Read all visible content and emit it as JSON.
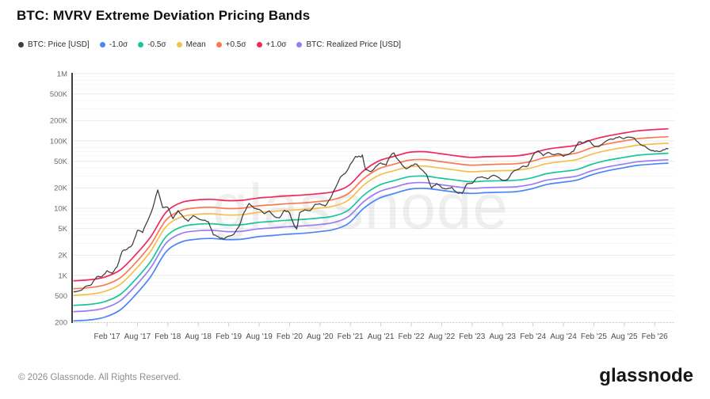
{
  "header": {
    "title": "BTC: MVRV Extreme Deviation Pricing Bands"
  },
  "legend": [
    {
      "label": "BTC: Price [USD]",
      "color": "#3d3d3d"
    },
    {
      "label": "-1.0σ",
      "color": "#4a86f7"
    },
    {
      "label": "-0.5σ",
      "color": "#17c79b"
    },
    {
      "label": "Mean",
      "color": "#f5bf4a"
    },
    {
      "label": "+0.5σ",
      "color": "#fa7950"
    },
    {
      "label": "+1.0σ",
      "color": "#f2275c"
    },
    {
      "label": "BTC: Realized Price [USD]",
      "color": "#9b7df2"
    }
  ],
  "watermark": "glassnode",
  "footer": {
    "copyright": "© 2026 Glassnode. All Rights Reserved.",
    "logo": "glassnode"
  },
  "chart_data": {
    "type": "line",
    "title": "BTC: MVRV Extreme Deviation Pricing Bands",
    "grid": "horizontal-log",
    "legend_position": "top",
    "y_axis": {
      "scale": "log",
      "range": [
        200,
        1000000
      ],
      "ticks": [
        {
          "label": "1M",
          "value": 1000000
        },
        {
          "label": "500K",
          "value": 500000
        },
        {
          "label": "200K",
          "value": 200000
        },
        {
          "label": "100K",
          "value": 100000
        },
        {
          "label": "50K",
          "value": 50000
        },
        {
          "label": "20K",
          "value": 20000
        },
        {
          "label": "10K",
          "value": 10000
        },
        {
          "label": "5K",
          "value": 5000
        },
        {
          "label": "2K",
          "value": 2000
        },
        {
          "label": "1K",
          "value": 1000
        },
        {
          "label": "500",
          "value": 500
        },
        {
          "label": "200",
          "value": 200
        }
      ]
    },
    "x_axis": {
      "unit": "decimal_year",
      "range": [
        2016.53,
        2026.4
      ],
      "ticks": [
        {
          "label": "Feb '17",
          "t": 2017.083
        },
        {
          "label": "Aug '17",
          "t": 2017.583
        },
        {
          "label": "Feb '18",
          "t": 2018.083
        },
        {
          "label": "Aug '18",
          "t": 2018.583
        },
        {
          "label": "Feb '19",
          "t": 2019.083
        },
        {
          "label": "Aug '19",
          "t": 2019.583
        },
        {
          "label": "Feb '20",
          "t": 2020.083
        },
        {
          "label": "Aug '20",
          "t": 2020.583
        },
        {
          "label": "Feb '21",
          "t": 2021.083
        },
        {
          "label": "Aug '21",
          "t": 2021.583
        },
        {
          "label": "Feb '22",
          "t": 2022.083
        },
        {
          "label": "Aug '22",
          "t": 2022.583
        },
        {
          "label": "Feb '23",
          "t": 2023.083
        },
        {
          "label": "Aug '23",
          "t": 2023.583
        },
        {
          "label": "Feb '24",
          "t": 2024.083
        },
        {
          "label": "Aug '24",
          "t": 2024.583
        },
        {
          "label": "Feb '25",
          "t": 2025.083
        },
        {
          "label": "Aug '25",
          "t": 2025.583
        },
        {
          "label": "Feb '26",
          "t": 2026.083
        }
      ]
    },
    "band_x": [
      2016.54,
      2016.8,
      2017.05,
      2017.3,
      2017.55,
      2017.8,
      2018.05,
      2018.3,
      2018.55,
      2018.8,
      2019.05,
      2019.3,
      2019.55,
      2019.8,
      2020.05,
      2020.3,
      2020.55,
      2020.8,
      2021.05,
      2021.3,
      2021.55,
      2021.8,
      2022.05,
      2022.3,
      2022.55,
      2022.8,
      2023.05,
      2023.3,
      2023.55,
      2023.8,
      2024.05,
      2024.3,
      2024.55,
      2024.8,
      2025.05,
      2025.3,
      2025.55,
      2025.8,
      2026.05,
      2026.3
    ],
    "series": [
      {
        "name": "+1.0σ",
        "color": "#f2275c",
        "kind": "band",
        "values": [
          835,
          864,
          950,
          1210,
          2020,
          3740,
          8640,
          12100,
          13250,
          13540,
          12960,
          13100,
          14100,
          14690,
          15260,
          15700,
          16420,
          17570,
          21600,
          36000,
          50400,
          59000,
          67700,
          69100,
          64800,
          60500,
          57000,
          58200,
          59000,
          59900,
          64800,
          74900,
          80600,
          86400,
          103700,
          118100,
          129600,
          141100,
          146900,
          151200
        ]
      },
      {
        "name": "+0.5σ",
        "color": "#fa7950",
        "kind": "band",
        "values": [
          638,
          660,
          726,
          924,
          1540,
          2860,
          6600,
          9240,
          10120,
          10340,
          9900,
          10010,
          10780,
          11220,
          11660,
          11990,
          12540,
          13420,
          16500,
          27500,
          38500,
          45100,
          51700,
          52800,
          49500,
          46200,
          43600,
          44400,
          45100,
          45800,
          49500,
          57200,
          61600,
          66000,
          79200,
          90200,
          99000,
          107800,
          112200,
          115500
        ]
      },
      {
        "name": "Mean",
        "color": "#f5bf4a",
        "kind": "band",
        "values": [
          510,
          528,
          581,
          739,
          1230,
          2290,
          5280,
          7390,
          8100,
          8270,
          7920,
          8010,
          8620,
          8980,
          9330,
          9590,
          10000,
          10740,
          13200,
          22000,
          30800,
          36100,
          41400,
          42200,
          39600,
          37000,
          34800,
          35600,
          36100,
          36600,
          39600,
          45800,
          49300,
          52800,
          63400,
          72200,
          79200,
          86200,
          89800,
          92400
        ]
      },
      {
        "name": "-0.5σ",
        "color": "#17c79b",
        "kind": "band",
        "values": [
          360,
          372,
          410,
          522,
          870,
          1620,
          3740,
          5250,
          5750,
          5880,
          5630,
          5690,
          6130,
          6380,
          6630,
          6820,
          7130,
          7630,
          9380,
          15600,
          21900,
          25600,
          29400,
          30000,
          28100,
          26300,
          24800,
          25300,
          25600,
          26000,
          28100,
          32500,
          35000,
          37500,
          45000,
          51300,
          56300,
          61300,
          63800,
          65600
        ]
      },
      {
        "name": "-1.0σ",
        "color": "#4a86f7",
        "kind": "band",
        "values": [
          212,
          219,
          241,
          308,
          515,
          960,
          2230,
          3140,
          3460,
          3550,
          3420,
          3470,
          3760,
          3930,
          4110,
          4240,
          4460,
          4800,
          5930,
          9940,
          14000,
          16500,
          19100,
          19700,
          18600,
          17400,
          16600,
          17000,
          17300,
          17600,
          19300,
          22400,
          24200,
          26100,
          31400,
          35900,
          39600,
          43300,
          45200,
          46700
        ]
      },
      {
        "name": "BTC: Realized Price [USD]",
        "color": "#9b7df2",
        "kind": "band",
        "values": [
          290,
          300,
          330,
          420,
          700,
          1300,
          3000,
          4200,
          4600,
          4700,
          4500,
          4550,
          4900,
          5100,
          5300,
          5450,
          5700,
          6100,
          7500,
          12500,
          17500,
          20500,
          23500,
          24000,
          22500,
          21000,
          19800,
          20200,
          20500,
          20800,
          22500,
          26000,
          28000,
          30000,
          36000,
          41000,
          45000,
          49000,
          51000,
          52500
        ]
      },
      {
        "name": "BTC: Price [USD]",
        "color": "#3d3d3d",
        "kind": "price",
        "x": [
          2016.54,
          2016.583,
          2016.667,
          2016.75,
          2016.833,
          2016.917,
          2017.0,
          2017.083,
          2017.167,
          2017.25,
          2017.333,
          2017.417,
          2017.5,
          2017.583,
          2017.667,
          2017.75,
          2017.833,
          2017.917,
          2018.0,
          2018.083,
          2018.167,
          2018.25,
          2018.333,
          2018.417,
          2018.5,
          2018.583,
          2018.667,
          2018.75,
          2018.833,
          2018.917,
          2019.0,
          2019.083,
          2019.167,
          2019.25,
          2019.333,
          2019.417,
          2019.5,
          2019.583,
          2019.667,
          2019.75,
          2019.833,
          2019.917,
          2020.0,
          2020.083,
          2020.167,
          2020.2,
          2020.25,
          2020.333,
          2020.417,
          2020.5,
          2020.583,
          2020.667,
          2020.75,
          2020.833,
          2020.917,
          2021.0,
          2021.083,
          2021.167,
          2021.25,
          2021.28,
          2021.333,
          2021.417,
          2021.5,
          2021.583,
          2021.667,
          2021.75,
          2021.8,
          2021.833,
          2021.917,
          2022.0,
          2022.083,
          2022.167,
          2022.25,
          2022.333,
          2022.417,
          2022.5,
          2022.583,
          2022.667,
          2022.75,
          2022.833,
          2022.917,
          2023.0,
          2023.083,
          2023.167,
          2023.25,
          2023.333,
          2023.417,
          2023.5,
          2023.583,
          2023.667,
          2023.75,
          2023.833,
          2023.917,
          2024.0,
          2024.083,
          2024.167,
          2024.25,
          2024.333,
          2024.417,
          2024.5,
          2024.583,
          2024.667,
          2024.75,
          2024.833,
          2024.917,
          2025.0,
          2025.083,
          2025.167,
          2025.25,
          2025.333,
          2025.417,
          2025.5,
          2025.583,
          2025.667,
          2025.75,
          2025.833,
          2025.917,
          2026.0,
          2026.083,
          2026.167,
          2026.25,
          2026.3
        ],
        "values": [
          570,
          580,
          608,
          700,
          742,
          960,
          965,
          1180,
          1080,
          1350,
          2300,
          2480,
          2870,
          4700,
          4340,
          6450,
          9900,
          18700,
          10200,
          10300,
          7000,
          9250,
          7500,
          6400,
          7750,
          7000,
          6600,
          6300,
          4000,
          3740,
          3450,
          3850,
          4100,
          5300,
          8550,
          11800,
          10000,
          9600,
          8300,
          9150,
          7550,
          7200,
          9350,
          8550,
          5300,
          4900,
          8600,
          9450,
          9140,
          11350,
          11650,
          10800,
          13800,
          19700,
          29000,
          33100,
          45200,
          58800,
          57800,
          62000,
          37300,
          35000,
          41600,
          47100,
          43800,
          61300,
          66000,
          57000,
          46200,
          38500,
          43200,
          45500,
          37700,
          31800,
          19900,
          23300,
          20050,
          19400,
          20500,
          17100,
          16550,
          23100,
          23500,
          28500,
          29200,
          27200,
          30500,
          29200,
          26000,
          26900,
          34500,
          37700,
          42200,
          42500,
          61200,
          71300,
          60600,
          67500,
          62700,
          64600,
          59000,
          63300,
          70200,
          96400,
          93400,
          102000,
          84400,
          82500,
          94200,
          104600,
          107100,
          115800,
          108200,
          114000,
          110000,
          91000,
          84000,
          74000,
          70000,
          69500,
          74000,
          76000
        ]
      }
    ]
  }
}
